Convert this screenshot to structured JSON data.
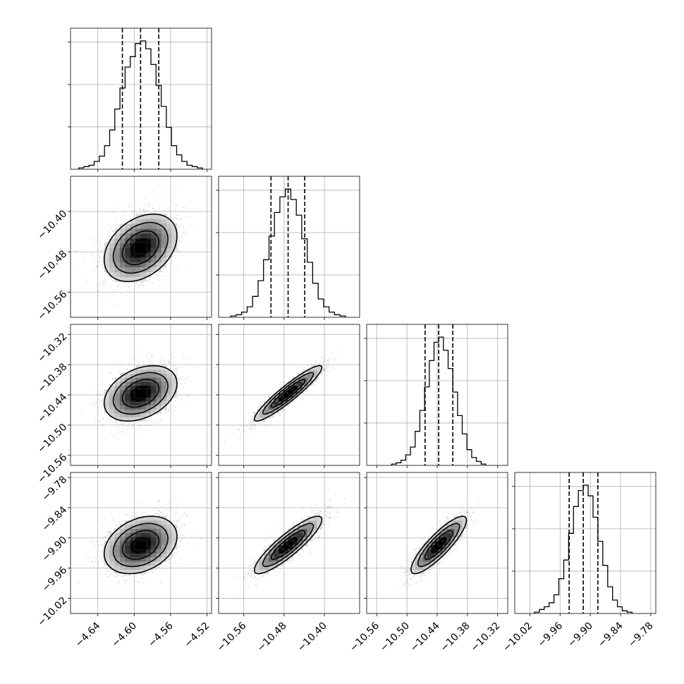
{
  "chart_data": {
    "type": "corner",
    "params": [
      {
        "range": [
          -4.67,
          -4.515
        ],
        "ticks": [
          -4.64,
          -4.6,
          -4.56,
          -4.52
        ],
        "tick_labels": [
          "−4.64",
          "−4.60",
          "−4.56",
          "−4.52"
        ],
        "quantiles": [
          -4.613,
          -4.593,
          -4.573
        ],
        "hist": [
          1,
          2,
          3,
          6,
          10,
          18,
          30,
          46,
          62,
          78,
          86,
          96,
          98,
          92,
          80,
          64,
          48,
          32,
          18,
          11,
          6,
          3,
          2,
          1
        ]
      },
      {
        "range": [
          -10.61,
          -10.33
        ],
        "ticks": [
          -10.56,
          -10.48,
          -10.4
        ],
        "tick_labels": [
          "−10.56",
          "−10.48",
          "−10.40"
        ],
        "quantiles": [
          -10.506,
          -10.472,
          -10.439
        ],
        "hist": [
          1,
          2,
          4,
          8,
          16,
          28,
          44,
          62,
          80,
          92,
          98,
          90,
          78,
          60,
          42,
          26,
          14,
          8,
          4,
          2,
          1
        ]
      },
      {
        "range": [
          -10.58,
          -10.3
        ],
        "ticks": [
          -10.56,
          -10.5,
          -10.44,
          -10.38,
          -10.32
        ],
        "tick_labels": [
          "−10.56",
          "−10.50",
          "−10.44",
          "−10.38",
          "−10.32"
        ],
        "quantiles": [
          -10.464,
          -10.437,
          -10.409
        ],
        "hist": [
          1,
          2,
          4,
          8,
          14,
          26,
          42,
          60,
          80,
          94,
          98,
          88,
          74,
          56,
          38,
          24,
          12,
          6,
          3,
          1
        ]
      },
      {
        "range": [
          -10.05,
          -9.77
        ],
        "ticks": [
          -10.02,
          -9.96,
          -9.9,
          -9.84,
          -9.78
        ],
        "tick_labels": [
          "−10.02",
          "−9.96",
          "−9.90",
          "−9.84",
          "−9.78"
        ],
        "quantiles": [
          -9.942,
          -9.914,
          -9.885
        ],
        "hist": [
          1,
          3,
          5,
          8,
          14,
          26,
          40,
          60,
          80,
          92,
          96,
          88,
          72,
          54,
          36,
          20,
          10,
          5,
          2,
          1
        ]
      }
    ],
    "correlations": {
      "1-0": 0.35,
      "2-0": 0.35,
      "2-1": 0.93,
      "3-0": 0.3,
      "3-1": 0.88,
      "3-2": 0.86
    },
    "grid": true
  }
}
